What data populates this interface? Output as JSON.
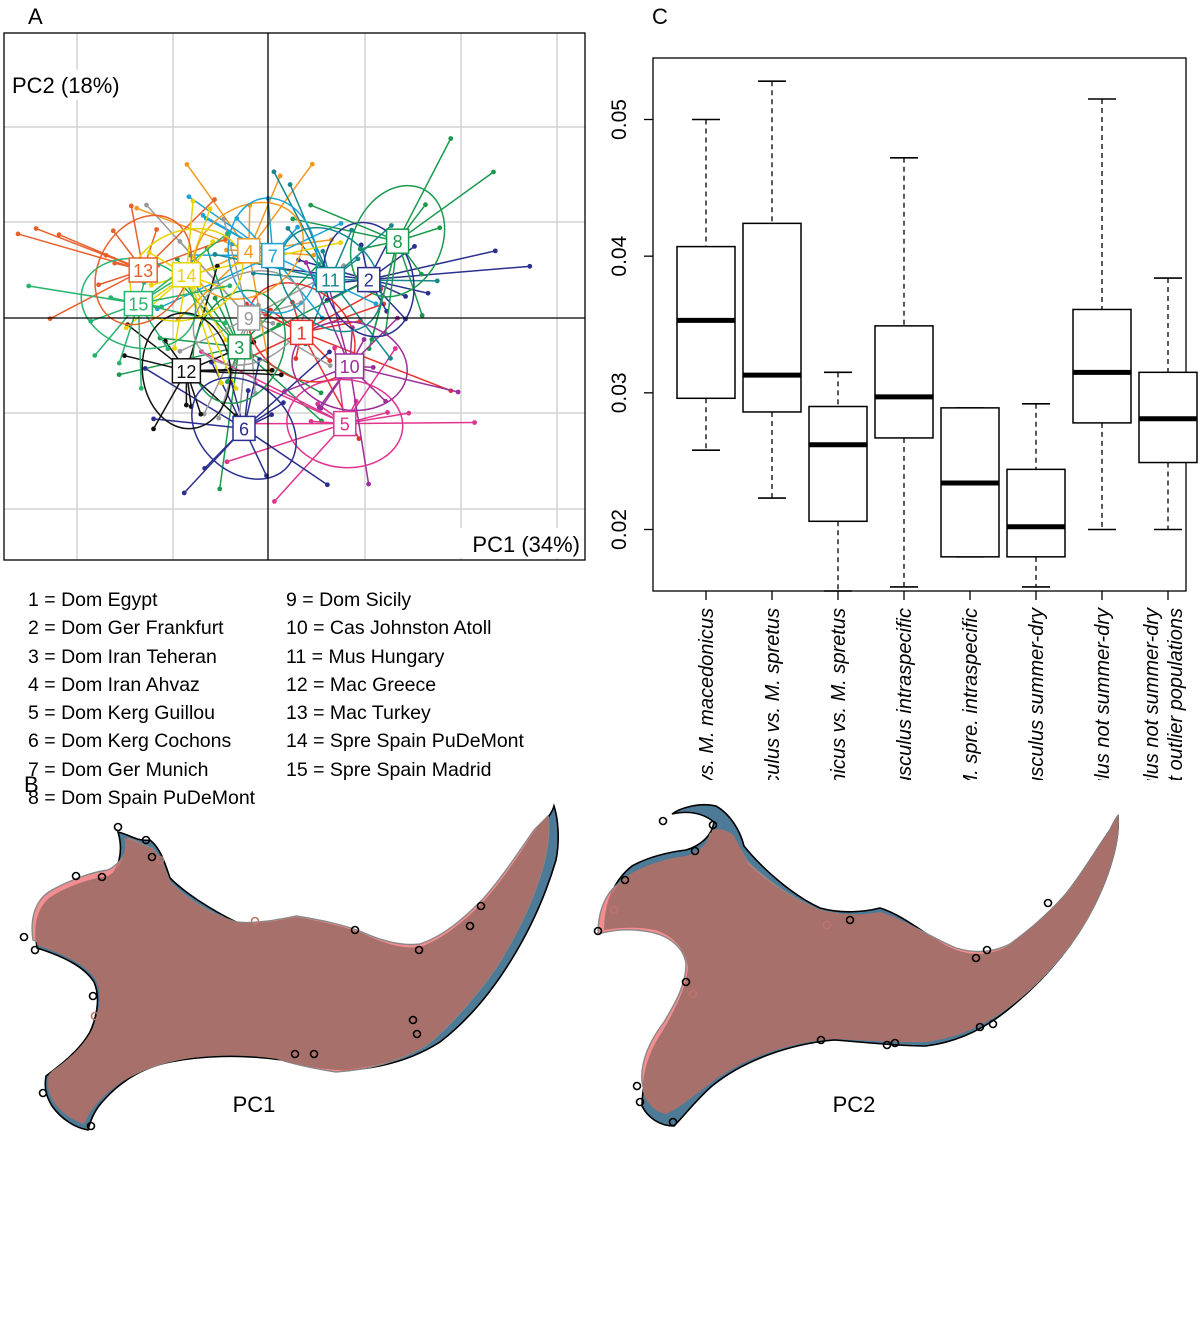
{
  "panels": {
    "a": "A",
    "b": "B",
    "c": "C"
  },
  "chart_data": [
    {
      "type": "scatter",
      "panel": "A",
      "description": "PCA scatter of mandible shape with per-population centroids and 95% ellipses",
      "xlabel": "PC1 (34%)",
      "ylabel": "PC2 (18%)",
      "grid": true,
      "centroids": [
        {
          "id": 1,
          "label": "1",
          "x": 0.7,
          "y": -0.3,
          "color": "#e8322c"
        },
        {
          "id": 2,
          "label": "2",
          "x": 2.1,
          "y": 0.8,
          "color": "#2b2f8f"
        },
        {
          "id": 3,
          "label": "3",
          "x": -0.6,
          "y": -0.6,
          "color": "#1a9a4c"
        },
        {
          "id": 4,
          "label": "4",
          "x": -0.4,
          "y": 1.4,
          "color": "#f39a1e"
        },
        {
          "id": 5,
          "label": "5",
          "x": 1.6,
          "y": -2.2,
          "color": "#e0348e"
        },
        {
          "id": 6,
          "label": "6",
          "x": -0.5,
          "y": -2.3,
          "color": "#2b2f8f"
        },
        {
          "id": 7,
          "label": "7",
          "x": 0.1,
          "y": 1.3,
          "color": "#1ca3d8"
        },
        {
          "id": 8,
          "label": "8",
          "x": 2.7,
          "y": 1.6,
          "color": "#1a9a4c"
        },
        {
          "id": 9,
          "label": "9",
          "x": -0.4,
          "y": 0.0,
          "color": "#9a9a9a"
        },
        {
          "id": 10,
          "label": "10",
          "x": 1.7,
          "y": -1.0,
          "color": "#9b2f98"
        },
        {
          "id": 11,
          "label": "11",
          "x": 1.3,
          "y": 0.8,
          "color": "#15888f"
        },
        {
          "id": 12,
          "label": "12",
          "x": -1.7,
          "y": -1.1,
          "color": "#111111"
        },
        {
          "id": 13,
          "label": "13",
          "x": -2.6,
          "y": 1.0,
          "color": "#e8602c"
        },
        {
          "id": 14,
          "label": "14",
          "x": -1.7,
          "y": 0.9,
          "color": "#e8d400"
        },
        {
          "id": 15,
          "label": "15",
          "x": -2.7,
          "y": 0.3,
          "color": "#28b46e"
        }
      ],
      "legend": [
        "1 = Dom Egypt",
        "2 = Dom Ger Frankfurt",
        "3 = Dom Iran Teheran",
        "4 = Dom Iran Ahvaz",
        "5 = Dom Kerg Guillou",
        "6 = Dom Kerg Cochons",
        "7 = Dom Ger Munich",
        "8 = Dom Spain PuDeMont",
        "9  = Dom Sicily",
        "10 = Cas Johnston Atoll",
        "11 = Mus Hungary",
        "12 = Mac Greece",
        "13 = Mac Turkey",
        "14 = Spre Spain PuDeMont",
        "15 = Spre Spain Madrid"
      ]
    },
    {
      "type": "box",
      "panel": "C",
      "ylim": [
        0.0155,
        0.0545
      ],
      "yticks": [
        0.02,
        0.03,
        0.04,
        0.05
      ],
      "ytick_labels": [
        "0.02",
        "0.03",
        "0.04",
        "0.05"
      ],
      "categories": [
        {
          "label": "M. musculus vs.  M. macedonicus",
          "min": 0.0258,
          "q1": 0.0296,
          "median": 0.0353,
          "q3": 0.0407,
          "max": 0.05
        },
        {
          "label": "M. musculus vs. M. spretus",
          "min": 0.0223,
          "q1": 0.0286,
          "median": 0.0313,
          "q3": 0.0424,
          "max": 0.0528
        },
        {
          "label": "M. macedonicus vs. M. spretus",
          "min": 0.0155,
          "q1": 0.0206,
          "median": 0.0262,
          "q3": 0.029,
          "max": 0.0315
        },
        {
          "label": "M. musculus intraspecific",
          "min": 0.0158,
          "q1": 0.0267,
          "median": 0.0297,
          "q3": 0.0349,
          "max": 0.0472
        },
        {
          "label": "M. mac. / M. spre. intraspecific",
          "min": 0.018,
          "q1": 0.018,
          "median": 0.0234,
          "q3": 0.0289,
          "max": 0.0289
        },
        {
          "label": "M. musculus summer-dry",
          "min": 0.0158,
          "q1": 0.018,
          "median": 0.0202,
          "q3": 0.0244,
          "max": 0.0292
        },
        {
          "label": "M. musculus not summer-dry",
          "min": 0.02,
          "q1": 0.0278,
          "median": 0.0315,
          "q3": 0.0361,
          "max": 0.0515
        },
        {
          "label": "M. musculus not summer-dry",
          "label2": "without outlier populations",
          "min": 0.02,
          "q1": 0.0249,
          "median": 0.0281,
          "q3": 0.0315,
          "max": 0.0384
        }
      ]
    },
    {
      "type": "shape-deformation",
      "panel": "B",
      "labels": [
        "PC1",
        "PC2"
      ],
      "colors": {
        "positive": "#4d7a96",
        "negative": "#f0757a",
        "overlap": "#a8706a"
      }
    }
  ]
}
